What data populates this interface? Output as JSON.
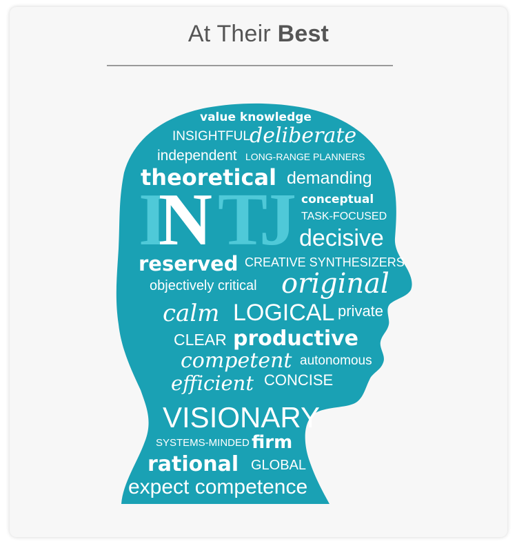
{
  "title": {
    "prefix": "At Their ",
    "emphasis": "Best"
  },
  "colors": {
    "head": "#1aa1b4",
    "word": "#ffffff",
    "type_letters": "#4fc9d8"
  },
  "type_letters": {
    "i": "I",
    "n": "N",
    "t": "T",
    "j": "J"
  },
  "words": {
    "value_knowledge": "value knowledge",
    "insightful": "INSIGHTFUL",
    "deliberate": "deliberate",
    "independent": "independent",
    "long_range_planners": "LONG-RANGE PLANNERS",
    "theoretical": "theoretical",
    "demanding": "demanding",
    "conceptual": "conceptual",
    "task_focused": "TASK-FOCUSED",
    "decisive": "decisive",
    "reserved": "reserved",
    "creative_synthesizers": "CREATIVE SYNTHESIZERS",
    "objectively_critical": "objectively critical",
    "original": "original",
    "calm": "calm",
    "logical": "LOGICAL",
    "private": "private",
    "clear": "CLEAR",
    "productive": "productive",
    "competent": "competent",
    "autonomous": "autonomous",
    "efficient": "efficient",
    "concise": "CONCISE",
    "visionary": "VISIONARY",
    "systems_minded": "SYSTEMS-MINDED",
    "firm": "firm",
    "rational": "rational",
    "global": "GLOBAL",
    "expect_competence": "expect competence"
  }
}
